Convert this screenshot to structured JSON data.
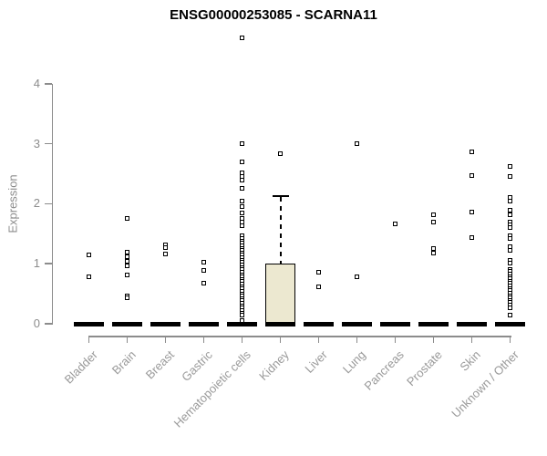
{
  "chart_data": {
    "type": "boxplot",
    "title": "ENSG00000253085 - SCARNA11",
    "xlabel": "",
    "ylabel": "Expression",
    "ylim": [
      0,
      4
    ],
    "yticks": [
      0,
      1,
      2,
      3,
      4
    ],
    "grid": false,
    "legend": false,
    "marker_style": "open-square",
    "colors": {
      "box_fill": "#ece8d0",
      "box_border": "#000000",
      "axis": "#8c8c8c",
      "tick_label": "#8c8c8c",
      "category_label": "#9a9a9a",
      "title": "#000000",
      "point": "#000000"
    },
    "categories": [
      "Bladder",
      "Brain",
      "Breast",
      "Gastric",
      "Hematopoietic cells",
      "Kidney",
      "Liver",
      "Lung",
      "Pancreas",
      "Prostate",
      "Skin",
      "Unknown / Other"
    ],
    "series": [
      {
        "category": "Bladder",
        "q1": 0,
        "median": 0,
        "q3": 0,
        "whisker_low": 0,
        "whisker_high": 0,
        "outliers": [
          1.14,
          0.78
        ]
      },
      {
        "category": "Brain",
        "q1": 0,
        "median": 0,
        "q3": 0,
        "whisker_low": 0,
        "whisker_high": 0,
        "outliers": [
          1.75,
          1.19,
          1.11,
          1.04,
          0.97,
          0.81,
          0.47,
          0.44
        ]
      },
      {
        "category": "Breast",
        "q1": 0,
        "median": 0,
        "q3": 0,
        "whisker_low": 0,
        "whisker_high": 0,
        "outliers": [
          1.32,
          1.27,
          1.17
        ]
      },
      {
        "category": "Gastric",
        "q1": 0,
        "median": 0,
        "q3": 0,
        "whisker_low": 0,
        "whisker_high": 0,
        "outliers": [
          1.03,
          0.89,
          0.68
        ]
      },
      {
        "category": "Hematopoietic cells",
        "q1": 0,
        "median": 0,
        "q3": 0,
        "whisker_low": 0,
        "whisker_high": 0,
        "outliers": [
          4.76,
          3.0,
          2.7,
          2.51,
          2.45,
          2.39,
          2.25,
          2.04,
          1.95,
          1.85,
          1.75,
          1.69,
          1.63,
          1.47,
          1.42,
          1.38,
          1.34,
          1.3,
          1.26,
          1.22,
          1.18,
          1.14,
          1.1,
          1.06,
          1.02,
          0.98,
          0.94,
          0.9,
          0.86,
          0.82,
          0.78,
          0.74,
          0.7,
          0.66,
          0.62,
          0.58,
          0.54,
          0.5,
          0.46,
          0.42,
          0.38,
          0.34,
          0.3,
          0.26,
          0.22,
          0.18,
          0.14,
          0.05
        ]
      },
      {
        "category": "Kidney",
        "q1": 0,
        "median": 0,
        "q3": 1.0,
        "whisker_low": 0,
        "whisker_high": 2.15,
        "outliers": [
          2.84
        ]
      },
      {
        "category": "Liver",
        "q1": 0,
        "median": 0,
        "q3": 0,
        "whisker_low": 0,
        "whisker_high": 0,
        "outliers": [
          0.86,
          0.61
        ]
      },
      {
        "category": "Lung",
        "q1": 0,
        "median": 0,
        "q3": 0,
        "whisker_low": 0,
        "whisker_high": 0,
        "outliers": [
          3.0,
          0.79
        ]
      },
      {
        "category": "Pancreas",
        "q1": 0,
        "median": 0,
        "q3": 0,
        "whisker_low": 0,
        "whisker_high": 0,
        "outliers": [
          1.66
        ]
      },
      {
        "category": "Prostate",
        "q1": 0,
        "median": 0,
        "q3": 0,
        "whisker_low": 0,
        "whisker_high": 0,
        "outliers": [
          1.81,
          1.7,
          1.25,
          1.18
        ]
      },
      {
        "category": "Skin",
        "q1": 0,
        "median": 0,
        "q3": 0,
        "whisker_low": 0,
        "whisker_high": 0,
        "outliers": [
          2.86,
          2.47,
          1.86,
          1.43
        ]
      },
      {
        "category": "Unknown / Other",
        "q1": 0,
        "median": 0,
        "q3": 0,
        "whisker_low": 0,
        "whisker_high": 0,
        "outliers": [
          2.62,
          2.46,
          2.11,
          2.05,
          1.89,
          1.82,
          1.7,
          1.65,
          1.6,
          1.47,
          1.42,
          1.29,
          1.22,
          1.06,
          1.01,
          0.91,
          0.87,
          0.83,
          0.79,
          0.75,
          0.71,
          0.67,
          0.63,
          0.59,
          0.55,
          0.51,
          0.47,
          0.43,
          0.39,
          0.35,
          0.31,
          0.27,
          0.15
        ]
      }
    ]
  }
}
